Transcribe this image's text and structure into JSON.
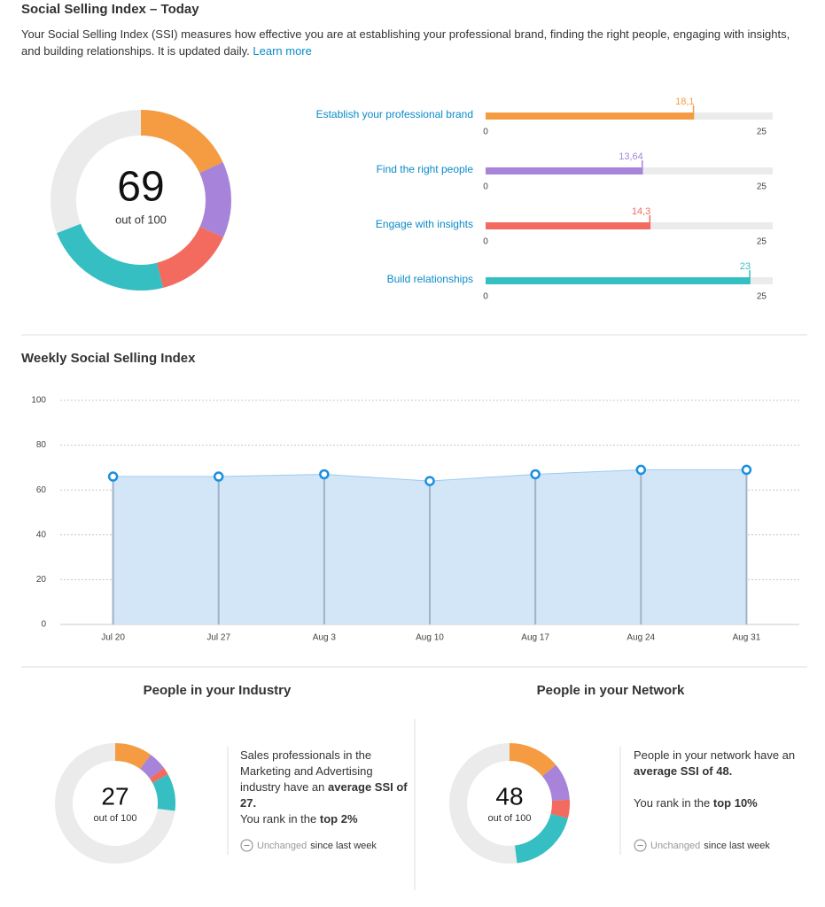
{
  "header": {
    "title": "Social Selling Index – Today",
    "description": "Your Social Selling Index (SSI) measures how effective you are at establishing your professional brand, finding the right people, engaging with insights, and building relationships. It is updated daily.",
    "link": "Learn more"
  },
  "chart_data": [
    {
      "type": "donut",
      "center_value": 69,
      "center_label": "out of 100",
      "total": 100,
      "values": [
        18.1,
        13.64,
        14.3,
        23
      ],
      "colors": [
        "#f59b42",
        "#a784d9",
        "#f26b5e",
        "#36bfc3"
      ],
      "track_color": "#ebebeb"
    },
    {
      "type": "bar",
      "categories": [
        "Establish your professional brand",
        "Find the right people",
        "Engage with insights",
        "Build relationships"
      ],
      "values": [
        18.1,
        13.64,
        14.3,
        23
      ],
      "value_labels": [
        "18,1",
        "13,64",
        "14,3",
        "23"
      ],
      "colors": [
        "#f59b42",
        "#a784d9",
        "#f26b5e",
        "#36bfc3"
      ],
      "xlim": [
        0,
        25
      ],
      "xticks": [
        0,
        25
      ]
    },
    {
      "type": "area",
      "title": "Weekly Social Selling Index",
      "categories": [
        "Jul 20",
        "Jul 27",
        "Aug 3",
        "Aug 10",
        "Aug 17",
        "Aug 24",
        "Aug 31"
      ],
      "values": [
        66,
        66,
        67,
        64,
        67,
        69,
        69
      ],
      "ylim": [
        0,
        100
      ],
      "yticks": [
        0,
        20,
        40,
        60,
        80,
        100
      ],
      "grid": true,
      "color": "#d3e6f8",
      "line_color": "#9ccbef",
      "marker_color": "#1a8fe0"
    },
    {
      "type": "donut",
      "title": "People in your Industry",
      "center_value": 27,
      "center_label": "out of 100",
      "total": 100,
      "values": [
        10,
        5,
        2,
        10
      ],
      "colors": [
        "#f59b42",
        "#a784d9",
        "#f26b5e",
        "#36bfc3"
      ],
      "track_color": "#ebebeb",
      "text": "Sales professionals in the Marketing and Advertising industry have an",
      "highlight": "average SSI of 27.",
      "rank_text": "You rank in the",
      "rank": "top 2%",
      "status": "Unchanged",
      "status_suffix": "since last week"
    },
    {
      "type": "donut",
      "title": "People in your Network",
      "center_value": 48,
      "center_label": "out of 100",
      "total": 100,
      "values": [
        14,
        10,
        5,
        19
      ],
      "colors": [
        "#f59b42",
        "#a784d9",
        "#f26b5e",
        "#36bfc3"
      ],
      "track_color": "#ebebeb",
      "text": "People in your network have an",
      "highlight": "average SSI of 48.",
      "rank_text": "You rank in the",
      "rank": "top 10%",
      "status": "Unchanged",
      "status_suffix": "since last week"
    }
  ]
}
